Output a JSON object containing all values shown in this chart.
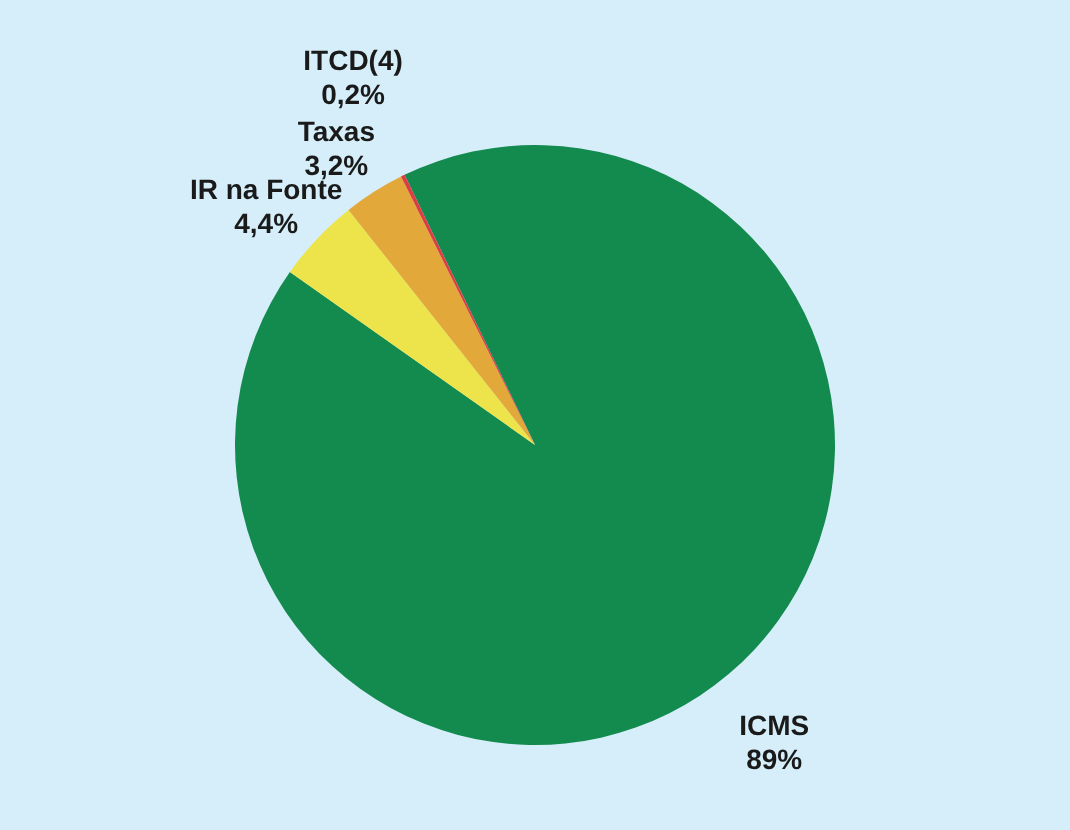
{
  "chart_data": {
    "type": "pie",
    "categories": [
      "ICMS",
      "IR na Fonte",
      "Taxas",
      "ITCD(4)"
    ],
    "values": [
      89,
      4.4,
      3.2,
      0.2
    ],
    "value_labels": [
      "89%",
      "4,4%",
      "3,2%",
      "0,2%"
    ],
    "colors": [
      "#138a4e",
      "#ece44a",
      "#e2a83a",
      "#dc3c44"
    ]
  }
}
